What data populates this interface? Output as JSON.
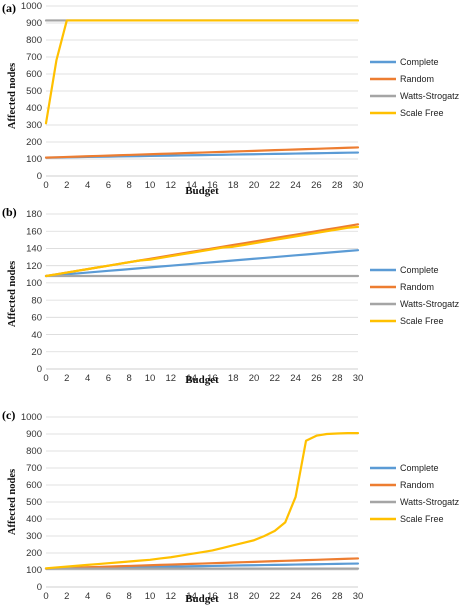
{
  "chart_data": [
    {
      "type": "line",
      "panel_label": "(a)",
      "xlabel": "Budget",
      "ylabel": "Affected nodes",
      "x": [
        0,
        1,
        2,
        3,
        4,
        5,
        6,
        7,
        8,
        9,
        10,
        11,
        12,
        13,
        14,
        15,
        16,
        17,
        18,
        19,
        20,
        21,
        22,
        23,
        24,
        25,
        26,
        27,
        28,
        29,
        30
      ],
      "xticks": [
        0,
        2,
        4,
        6,
        8,
        10,
        12,
        14,
        16,
        18,
        20,
        22,
        24,
        26,
        28,
        30
      ],
      "ylim": [
        0,
        1000
      ],
      "yticks": [
        0,
        100,
        200,
        300,
        400,
        500,
        600,
        700,
        800,
        900,
        1000
      ],
      "grid": "horizontal",
      "legend": "right",
      "series": [
        {
          "name": "Complete",
          "color": "#5b9bd5",
          "values": [
            108,
            109,
            110,
            111,
            112,
            113,
            114,
            115,
            116,
            117,
            118,
            119,
            120,
            121,
            122,
            123,
            124,
            125,
            126,
            127,
            128,
            129,
            130,
            131,
            132,
            133,
            134,
            135,
            136,
            137,
            138
          ]
        },
        {
          "name": "Random",
          "color": "#ed7d31",
          "values": [
            108,
            110,
            112,
            114,
            116,
            118,
            120,
            122,
            124,
            126,
            128,
            130,
            132,
            134,
            136,
            138,
            140,
            142,
            144,
            146,
            148,
            150,
            152,
            154,
            156,
            158,
            160,
            162,
            164,
            166,
            168
          ]
        },
        {
          "name": "Watts-Strogatz",
          "color": "#a5a5a5",
          "values": [
            915,
            915,
            915,
            915,
            915,
            915,
            915,
            915,
            915,
            915,
            915,
            915,
            915,
            915,
            915,
            915,
            915,
            915,
            915,
            915,
            915,
            915,
            915,
            915,
            915,
            915,
            915,
            915,
            915,
            915,
            915
          ]
        },
        {
          "name": "Scale Free",
          "color": "#ffc000",
          "values": [
            310,
            680,
            915,
            915,
            915,
            915,
            915,
            915,
            915,
            915,
            915,
            915,
            915,
            915,
            915,
            915,
            915,
            915,
            915,
            915,
            915,
            915,
            915,
            915,
            915,
            915,
            915,
            915,
            915,
            915,
            915
          ]
        }
      ]
    },
    {
      "type": "line",
      "panel_label": "(b)",
      "xlabel": "Budget",
      "ylabel": "Affected nodes",
      "x": [
        0,
        1,
        2,
        3,
        4,
        5,
        6,
        7,
        8,
        9,
        10,
        11,
        12,
        13,
        14,
        15,
        16,
        17,
        18,
        19,
        20,
        21,
        22,
        23,
        24,
        25,
        26,
        27,
        28,
        29,
        30
      ],
      "xticks": [
        0,
        2,
        4,
        6,
        8,
        10,
        12,
        14,
        16,
        18,
        20,
        22,
        24,
        26,
        28,
        30
      ],
      "ylim": [
        0,
        180
      ],
      "yticks": [
        0,
        20,
        40,
        60,
        80,
        100,
        120,
        140,
        160,
        180
      ],
      "grid": "horizontal",
      "legend": "right",
      "series": [
        {
          "name": "Complete",
          "color": "#5b9bd5",
          "values": [
            108,
            109,
            110,
            111,
            112,
            113,
            114,
            115,
            116,
            117,
            118,
            119,
            120,
            121,
            122,
            123,
            124,
            125,
            126,
            127,
            128,
            129,
            130,
            131,
            132,
            133,
            134,
            135,
            136,
            137,
            138
          ]
        },
        {
          "name": "Random",
          "color": "#ed7d31",
          "values": [
            108,
            110,
            112,
            114,
            116,
            118,
            120,
            122,
            124,
            126,
            128,
            130,
            132,
            134,
            136,
            138,
            140,
            142,
            144,
            146,
            148,
            150,
            152,
            154,
            156,
            158,
            160,
            162,
            164,
            166,
            168
          ]
        },
        {
          "name": "Watts-Strogatz",
          "color": "#a5a5a5",
          "values": [
            108,
            108,
            108,
            108,
            108,
            108,
            108,
            108,
            108,
            108,
            108,
            108,
            108,
            108,
            108,
            108,
            108,
            108,
            108,
            108,
            108,
            108,
            108,
            108,
            108,
            108,
            108,
            108,
            108,
            108,
            108
          ]
        },
        {
          "name": "Scale Free",
          "color": "#ffc000",
          "values": [
            108,
            110,
            112,
            114,
            116,
            118,
            120,
            122,
            124,
            126,
            127,
            129,
            131,
            133,
            135,
            137,
            139,
            141,
            142,
            144,
            146,
            148,
            150,
            152,
            154,
            156,
            158,
            160,
            162,
            164,
            165
          ]
        }
      ]
    },
    {
      "type": "line",
      "panel_label": "(c)",
      "xlabel": "Budget",
      "ylabel": "Affected nodes",
      "x": [
        0,
        1,
        2,
        3,
        4,
        5,
        6,
        7,
        8,
        9,
        10,
        11,
        12,
        13,
        14,
        15,
        16,
        17,
        18,
        19,
        20,
        21,
        22,
        23,
        24,
        25,
        26,
        27,
        28,
        29,
        30
      ],
      "xticks": [
        0,
        2,
        4,
        6,
        8,
        10,
        12,
        14,
        16,
        18,
        20,
        22,
        24,
        26,
        28,
        30
      ],
      "ylim": [
        0,
        1000
      ],
      "yticks": [
        0,
        100,
        200,
        300,
        400,
        500,
        600,
        700,
        800,
        900,
        1000
      ],
      "grid": "horizontal",
      "legend": "right",
      "series": [
        {
          "name": "Complete",
          "color": "#5b9bd5",
          "values": [
            108,
            109,
            110,
            111,
            112,
            113,
            114,
            115,
            116,
            117,
            118,
            119,
            120,
            121,
            122,
            123,
            124,
            125,
            126,
            127,
            128,
            129,
            130,
            131,
            132,
            133,
            134,
            135,
            136,
            137,
            138
          ]
        },
        {
          "name": "Random",
          "color": "#ed7d31",
          "values": [
            108,
            110,
            112,
            114,
            116,
            118,
            120,
            122,
            124,
            126,
            128,
            130,
            132,
            134,
            136,
            138,
            140,
            142,
            144,
            146,
            148,
            150,
            152,
            154,
            156,
            158,
            160,
            162,
            164,
            166,
            168
          ]
        },
        {
          "name": "Watts-Strogatz",
          "color": "#a5a5a5",
          "values": [
            108,
            108,
            108,
            108,
            108,
            108,
            108,
            108,
            108,
            108,
            108,
            108,
            108,
            108,
            108,
            108,
            108,
            108,
            108,
            108,
            108,
            108,
            108,
            108,
            108,
            108,
            108,
            108,
            108,
            108,
            108
          ]
        },
        {
          "name": "Scale Free",
          "color": "#ffc000",
          "values": [
            110,
            115,
            120,
            125,
            130,
            135,
            140,
            145,
            150,
            155,
            160,
            168,
            175,
            185,
            195,
            205,
            215,
            230,
            245,
            260,
            275,
            300,
            330,
            380,
            530,
            860,
            890,
            900,
            903,
            905,
            905
          ]
        }
      ]
    }
  ]
}
